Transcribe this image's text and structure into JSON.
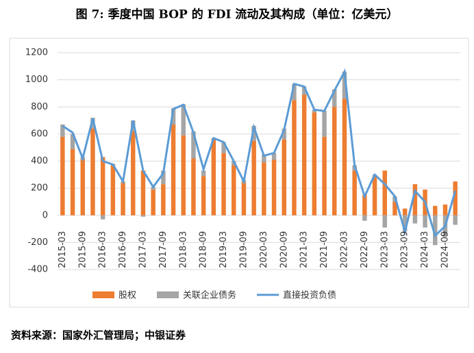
{
  "chart_data": {
    "type": "stacked-bar-line",
    "title": "图 7: 季度中国 BOP 的 FDI 流动及其构成（单位：亿美元）",
    "source": "资料来源：国家外汇管理局；中银证券",
    "categories": [
      "2015-03",
      null,
      "2015-09",
      null,
      "2016-03",
      null,
      "2016-09",
      null,
      "2017-03",
      null,
      "2017-09",
      null,
      "2018-03",
      null,
      "2018-09",
      null,
      "2019-03",
      null,
      "2019-09",
      null,
      "2020-03",
      null,
      "2020-09",
      null,
      "2021-03",
      null,
      "2021-09",
      null,
      "2022-03",
      null,
      "2022-09",
      null,
      "2023-03",
      null,
      "2023-09",
      null,
      "2024-03",
      null,
      "2024-09",
      null
    ],
    "series": [
      {
        "name": "股权",
        "kind": "bar",
        "color": "#ed7d31",
        "values": [
          580,
          490,
          410,
          640,
          430,
          370,
          240,
          620,
          330,
          190,
          230,
          670,
          590,
          420,
          290,
          560,
          460,
          370,
          240,
          550,
          390,
          410,
          560,
          850,
          890,
          760,
          580,
          800,
          860,
          330,
          150,
          290,
          330,
          100,
          50,
          230,
          190,
          70,
          80,
          250
        ]
      },
      {
        "name": "关联企业债务",
        "kind": "bar",
        "color": "#a5a5a5",
        "values": [
          90,
          110,
          20,
          80,
          -30,
          10,
          10,
          80,
          -10,
          20,
          100,
          120,
          230,
          200,
          40,
          10,
          80,
          30,
          20,
          110,
          60,
          50,
          80,
          120,
          60,
          20,
          190,
          130,
          200,
          40,
          -40,
          10,
          -90,
          40,
          -120,
          -60,
          -90,
          -220,
          -160,
          -70
        ]
      },
      {
        "name": "直接投资负债",
        "kind": "line",
        "color": "#5b9bd5",
        "values": [
          660,
          610,
          420,
          715,
          400,
          375,
          250,
          700,
          330,
          210,
          310,
          785,
          815,
          610,
          340,
          570,
          540,
          400,
          250,
          650,
          440,
          460,
          630,
          970,
          950,
          780,
          770,
          920,
          1060,
          370,
          140,
          300,
          230,
          140,
          -120,
          180,
          100,
          -150,
          -80,
          180
        ]
      }
    ],
    "ylim": [
      -400,
      1200
    ],
    "yticks": [
      -400,
      -200,
      0,
      200,
      400,
      600,
      800,
      1000,
      1200
    ],
    "grid": true
  }
}
